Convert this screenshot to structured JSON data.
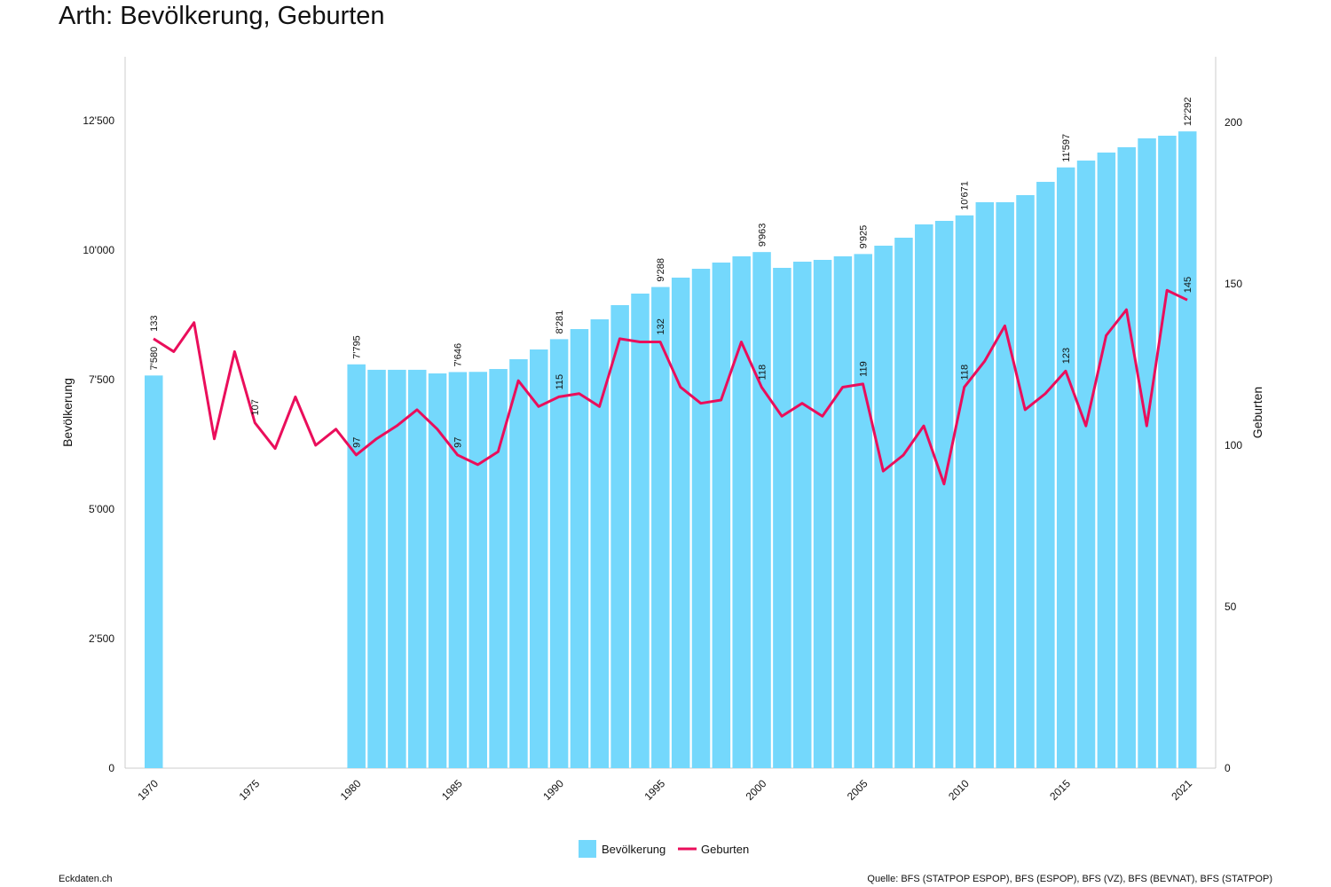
{
  "title": "Arth: Bevölkerung, Geburten",
  "footer": {
    "left": "Eckdaten.ch",
    "right": "Quelle: BFS (STATPOP ESPOP), BFS (ESPOP), BFS (VZ), BFS (BEVNAT), BFS (STATPOP)"
  },
  "chart_data": {
    "type": "bar+line",
    "title": "Arth: Bevölkerung, Geburten",
    "ylabel": "Bevölkerung",
    "y2label": "Geburten",
    "ylim": [
      0,
      13750
    ],
    "y2lim": [
      0,
      220
    ],
    "yticks": [
      "0",
      "2'500",
      "5'000",
      "7'500",
      "10'000",
      "12'500"
    ],
    "yticks_values": [
      0,
      2500,
      5000,
      7500,
      10000,
      12500
    ],
    "y2ticks": [
      0,
      50,
      100,
      150,
      200
    ],
    "xticks": [
      1970,
      1975,
      1980,
      1985,
      1990,
      1995,
      2000,
      2005,
      2010,
      2015,
      2021
    ],
    "legend": {
      "placement": "bottom-center",
      "entries": [
        "Bevölkerung",
        "Geburten"
      ]
    },
    "colors": {
      "Bevölkerung": "#74d8fc",
      "Geburten": "#ea0e5b"
    },
    "series": [
      {
        "name": "Bevölkerung",
        "type": "bar",
        "x": [
          1970,
          1980,
          1981,
          1982,
          1983,
          1984,
          1985,
          1986,
          1987,
          1988,
          1989,
          1990,
          1991,
          1992,
          1993,
          1994,
          1995,
          1996,
          1997,
          1998,
          1999,
          2000,
          2001,
          2002,
          2003,
          2004,
          2005,
          2006,
          2007,
          2008,
          2009,
          2010,
          2011,
          2012,
          2013,
          2014,
          2015,
          2016,
          2017,
          2018,
          2019,
          2020,
          2021
        ],
        "values": [
          7580,
          7795,
          7690,
          7690,
          7690,
          7620,
          7646,
          7650,
          7705,
          7894,
          8082,
          8281,
          8476,
          8664,
          8938,
          9161,
          9288,
          9469,
          9640,
          9760,
          9880,
          9963,
          9658,
          9777,
          9812,
          9880,
          9925,
          10086,
          10240,
          10497,
          10565,
          10671,
          10925,
          10925,
          11062,
          11318,
          11597,
          11729,
          11884,
          11986,
          12158,
          12209,
          12292
        ],
        "labels": {
          "1970": "7'580",
          "1980": "7'795",
          "1985": "7'646",
          "1990": "8'281",
          "1995": "9'288",
          "2000": "9'963",
          "2005": "9'925",
          "2010": "10'671",
          "2015": "11'597",
          "2021": "12'292"
        }
      },
      {
        "name": "Geburten",
        "type": "line",
        "x": [
          1970,
          1971,
          1972,
          1973,
          1974,
          1975,
          1976,
          1977,
          1978,
          1979,
          1980,
          1981,
          1982,
          1983,
          1984,
          1985,
          1986,
          1987,
          1988,
          1989,
          1990,
          1991,
          1992,
          1993,
          1994,
          1995,
          1996,
          1997,
          1998,
          1999,
          2000,
          2001,
          2002,
          2003,
          2004,
          2005,
          2006,
          2007,
          2008,
          2009,
          2010,
          2011,
          2012,
          2013,
          2014,
          2015,
          2016,
          2017,
          2018,
          2019,
          2020,
          2021
        ],
        "values": [
          133,
          129,
          138,
          102,
          129,
          107,
          99,
          115,
          100,
          105,
          97,
          102,
          106,
          111,
          105,
          97,
          94,
          98,
          120,
          112,
          115,
          116,
          112,
          133,
          132,
          132,
          118,
          113,
          114,
          132,
          118,
          109,
          113,
          109,
          118,
          119,
          92,
          97,
          106,
          88,
          118,
          126,
          137,
          111,
          116,
          123,
          106,
          134,
          142,
          106,
          148,
          145
        ],
        "labels": {
          "1970": "133",
          "1975": "107",
          "1980": "97",
          "1985": "97",
          "1990": "115",
          "1995": "132",
          "2000": "118",
          "2005": "119",
          "2010": "118",
          "2015": "123",
          "2021": "145"
        }
      }
    ]
  }
}
